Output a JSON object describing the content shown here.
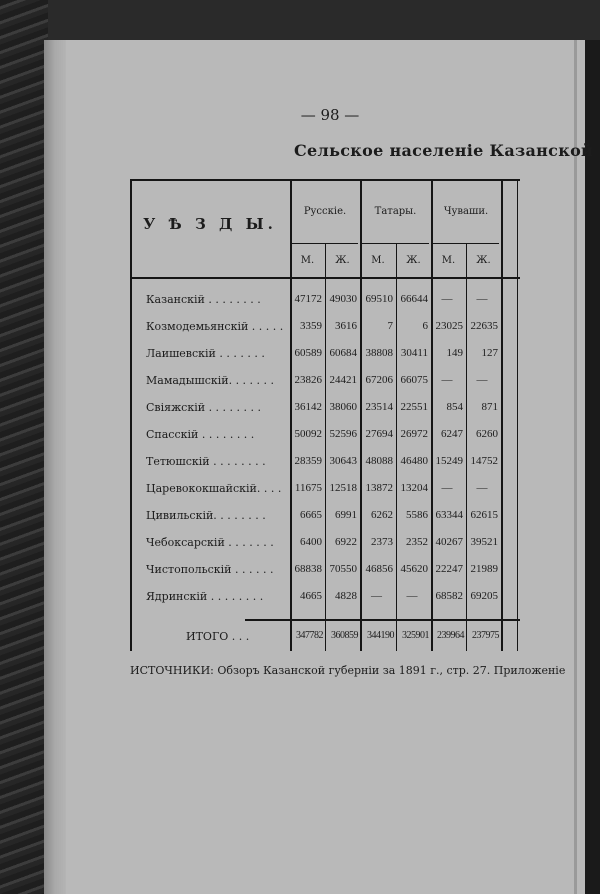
{
  "page_number": "— 98 —",
  "title": "Сельское населеніе Казанской",
  "table": {
    "header_first": "У Ѣ З Д Ы.",
    "groups": [
      "Русскіе.",
      "Татары.",
      "Чуваши."
    ],
    "subcols": [
      "М.",
      "Ж.",
      "М.",
      "Ж.",
      "М.",
      "Ж."
    ],
    "rows": [
      {
        "name": "Казанскій . . . . . . . .",
        "values": [
          "47172",
          "49030",
          "69510",
          "66644",
          "—",
          "—"
        ]
      },
      {
        "name": "Козмодемьянскій . . . . .",
        "values": [
          "3359",
          "3616",
          "7",
          "6",
          "23025",
          "22635"
        ]
      },
      {
        "name": "Лаишевскій . . . . . . .",
        "values": [
          "60589",
          "60684",
          "38808",
          "30411",
          "149",
          "127"
        ]
      },
      {
        "name": "Мамадышскій. . . . . . .",
        "values": [
          "23826",
          "24421",
          "67206",
          "66075",
          "—",
          "—"
        ]
      },
      {
        "name": "Свіяжскій . . . . . . . .",
        "values": [
          "36142",
          "38060",
          "23514",
          "22551",
          "854",
          "871"
        ]
      },
      {
        "name": "Спасскій . . . . . . . .",
        "values": [
          "50092",
          "52596",
          "27694",
          "26972",
          "6247",
          "6260"
        ]
      },
      {
        "name": "Тетюшскій . . . . . . . .",
        "values": [
          "28359",
          "30643",
          "48088",
          "46480",
          "15249",
          "14752"
        ]
      },
      {
        "name": "Царевококшайскій. . . .",
        "values": [
          "11675",
          "12518",
          "13872",
          "13204",
          "—",
          "—"
        ]
      },
      {
        "name": "Цивильскій. . . . . . . .",
        "values": [
          "6665",
          "6991",
          "6262",
          "5586",
          "63344",
          "62615"
        ]
      },
      {
        "name": "Чебоксарскій . . . . . . .",
        "values": [
          "6400",
          "6922",
          "2373",
          "2352",
          "40267",
          "39521"
        ]
      },
      {
        "name": "Чистопольскій . . . . . .",
        "values": [
          "68838",
          "70550",
          "46856",
          "45620",
          "22247",
          "21989"
        ]
      },
      {
        "name": "Ядринскій . . . . . . . .",
        "values": [
          "4665",
          "4828",
          "—",
          "—",
          "68582",
          "69205"
        ]
      }
    ],
    "total": {
      "name": "ИТОГО . . .",
      "values": [
        "347782",
        "360859",
        "344190",
        "325901",
        "239964",
        "237975"
      ]
    }
  },
  "sources": "ИСТОЧНИКИ: Обзоръ Казанской губерніи за 1891 г., стр. 27. Приложеніе"
}
